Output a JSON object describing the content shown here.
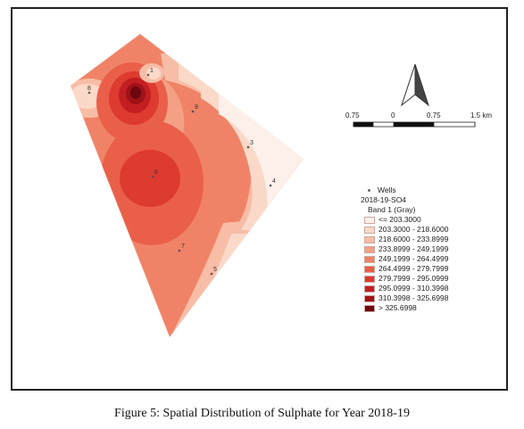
{
  "figure_caption": "Figure 5: Spatial Distribution of Sulphate for Year 2018-19",
  "wells": [
    {
      "label": "1"
    },
    {
      "label": "8"
    },
    {
      "label": "9"
    },
    {
      "label": "3"
    },
    {
      "label": "4"
    },
    {
      "label": "6"
    },
    {
      "label": "7"
    },
    {
      "label": "5"
    }
  ],
  "scale_bar": {
    "labels": [
      "0.75",
      "0",
      "0.75",
      "1.5 km"
    ]
  },
  "legend": {
    "wells_label": "Wells",
    "layer_name": "2018-19-SO4",
    "band_label": "Band 1 (Gray)",
    "classes": [
      {
        "label": "<= 203.3000",
        "color": "#fdf0ea"
      },
      {
        "label": "203.3000 - 218.6000",
        "color": "#fbd9c9"
      },
      {
        "label": "218.6000 - 233.8999",
        "color": "#f8bda6"
      },
      {
        "label": "233.8999 - 249.1999",
        "color": "#f4a085"
      },
      {
        "label": "249.1999 - 264.4999",
        "color": "#f08367"
      },
      {
        "label": "264.4999 - 279.7999",
        "color": "#ea5f49"
      },
      {
        "label": "279.7999 - 295.0999",
        "color": "#dd3a30"
      },
      {
        "label": "295.0999 - 310.3998",
        "color": "#c31f22"
      },
      {
        "label": "310.3998 - 325.6998",
        "color": "#a11218"
      },
      {
        "label": "> 325.6998",
        "color": "#6e0610"
      }
    ]
  }
}
